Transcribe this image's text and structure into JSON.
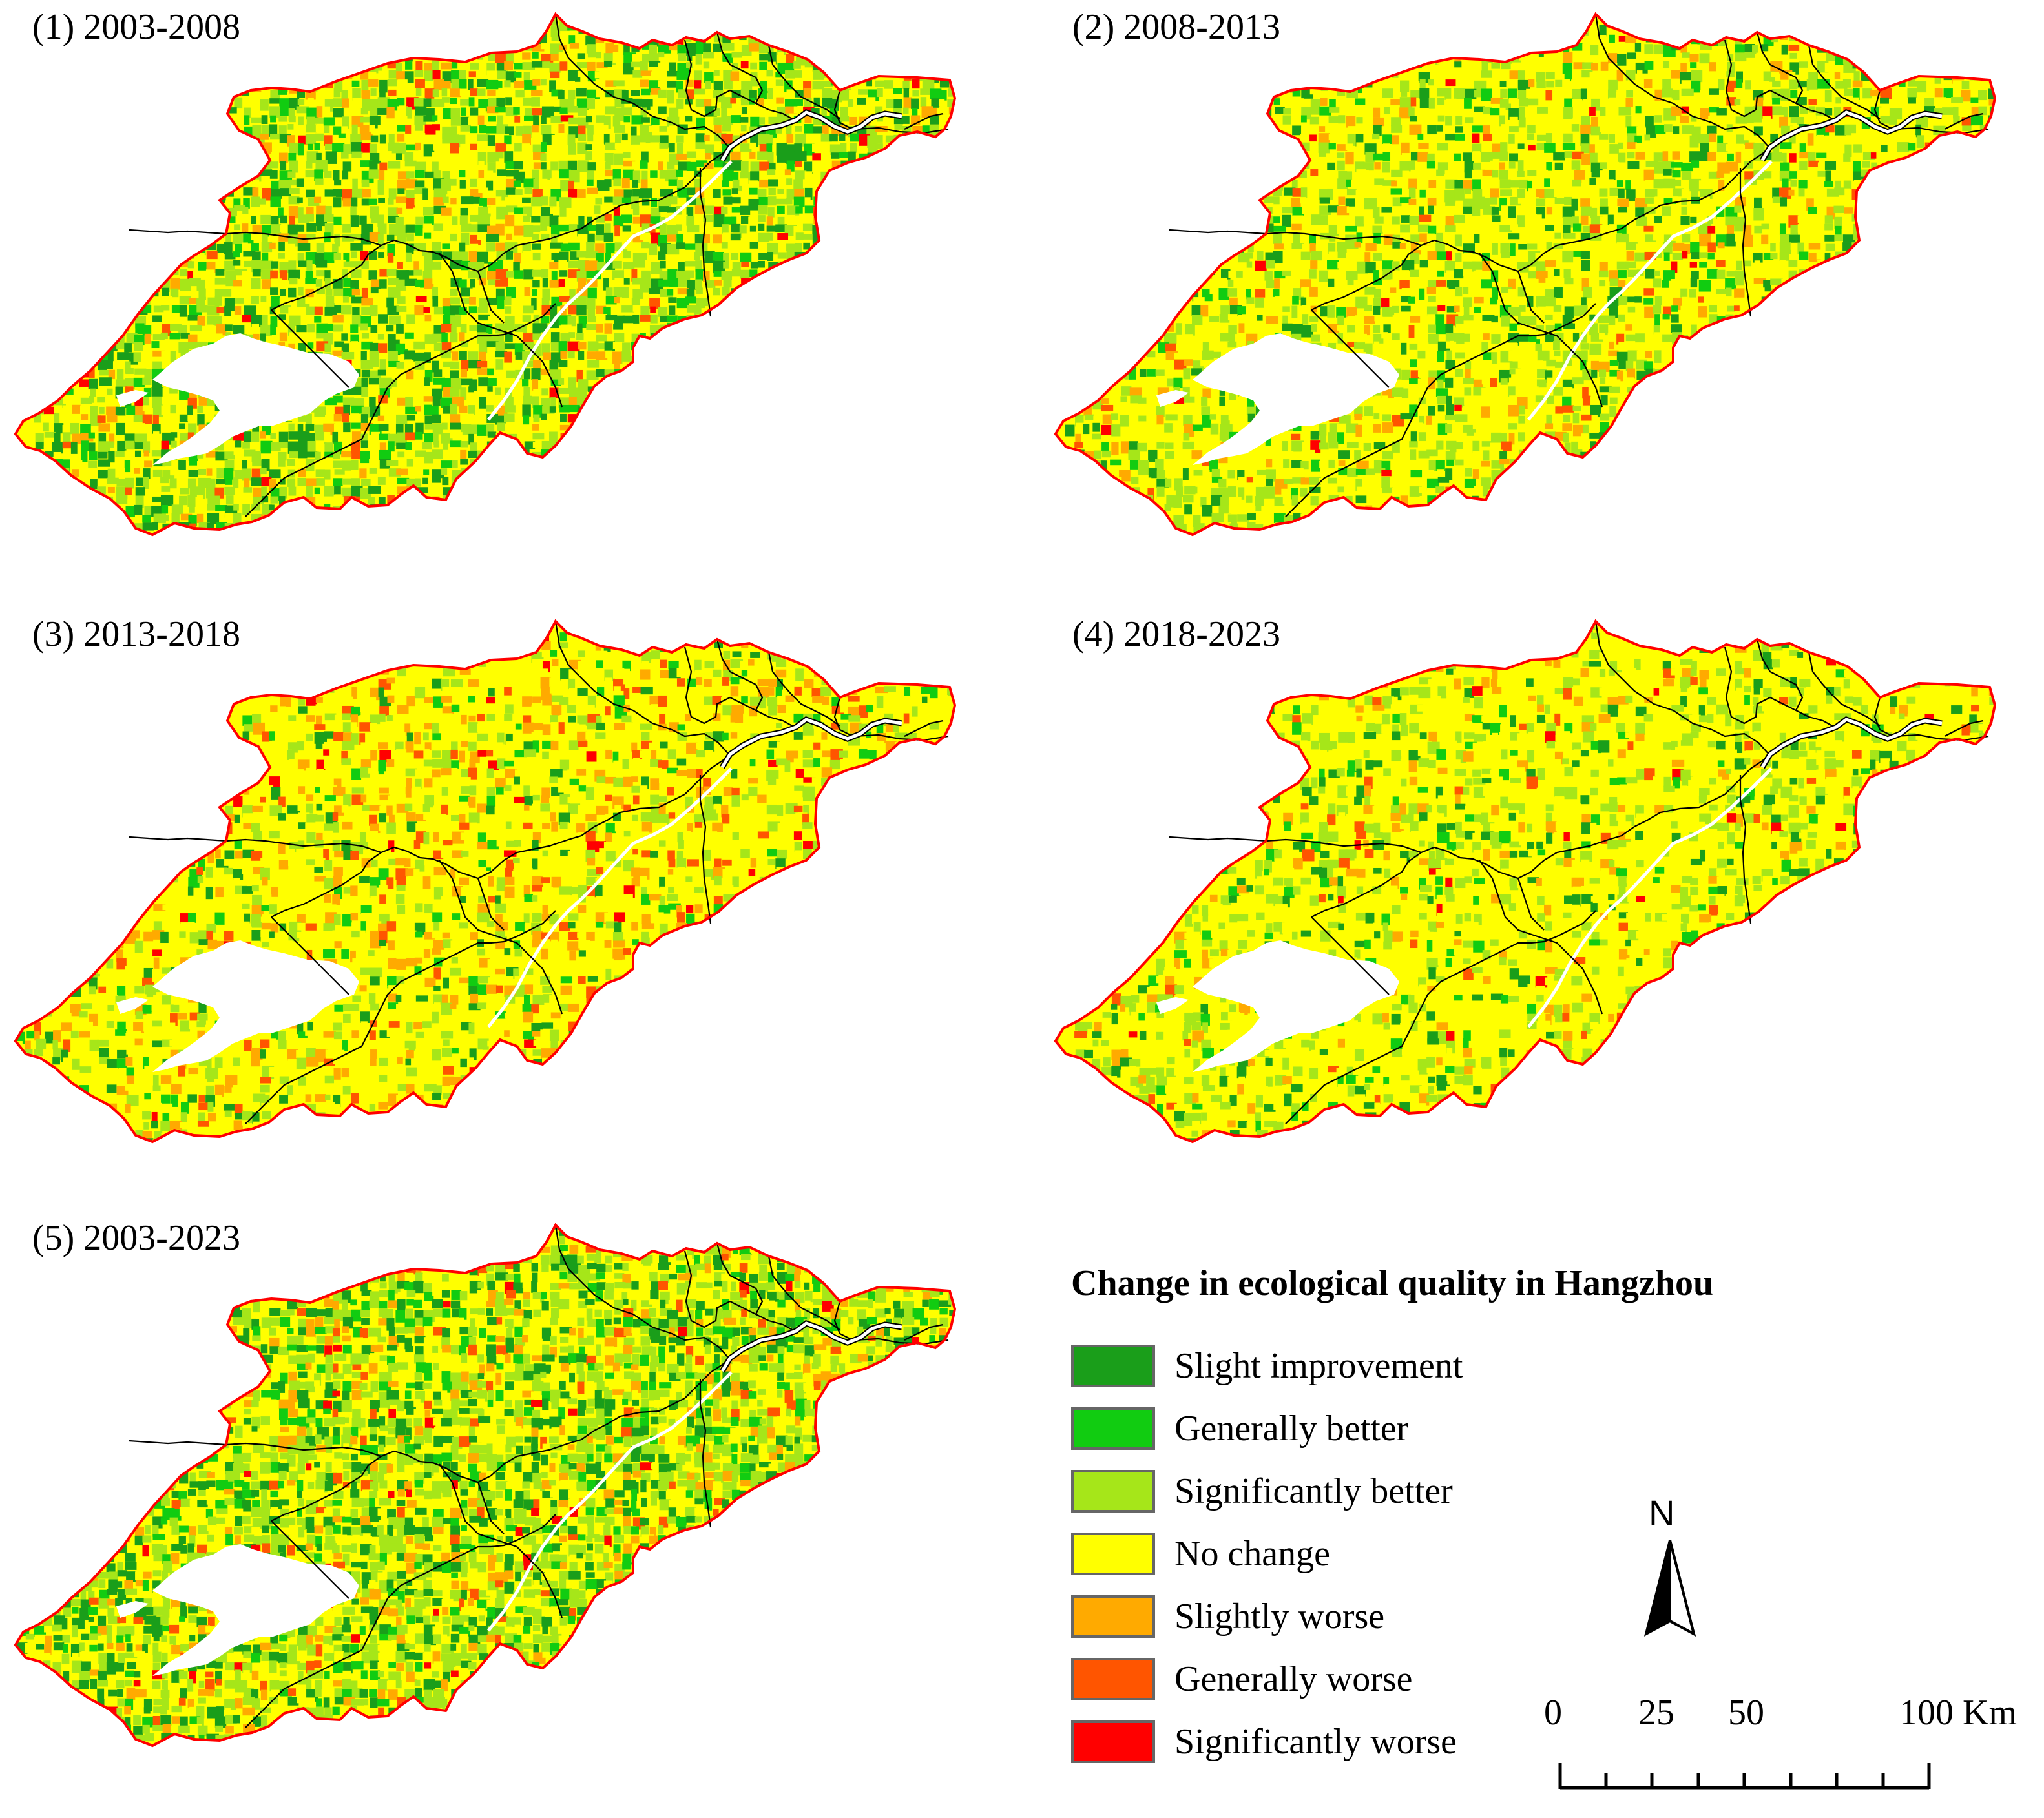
{
  "panels": [
    {
      "id": "p1",
      "title": "(1) 2003-2008",
      "dominant": "mixed_green",
      "seed": 11
    },
    {
      "id": "p2",
      "title": "(2) 2008-2013",
      "dominant": "yellow_green",
      "seed": 23
    },
    {
      "id": "p3",
      "title": "(3) 2013-2018",
      "dominant": "yellow_orange",
      "seed": 37
    },
    {
      "id": "p4",
      "title": "(4) 2018-2023",
      "dominant": "yellow",
      "seed": 51
    },
    {
      "id": "p5",
      "title": "(5) 2003-2023",
      "dominant": "mixed_green",
      "seed": 67
    }
  ],
  "legend": {
    "title": "Change in ecological quality in Hangzhou",
    "items": [
      {
        "label": "Slight improvement",
        "color": "#1a9e1a"
      },
      {
        "label": "Generally better",
        "color": "#11cc11"
      },
      {
        "label": "Significantly better",
        "color": "#a6e619"
      },
      {
        "label": "No change",
        "color": "#ffff00"
      },
      {
        "label": "Slightly worse",
        "color": "#ffaa00"
      },
      {
        "label": "Generally worse",
        "color": "#ff5500"
      },
      {
        "label": "Significantly worse",
        "color": "#ff0000"
      }
    ]
  },
  "north_arrow": {
    "label": "N"
  },
  "scale_bar": {
    "ticks": [
      "0",
      "25",
      "50",
      "100 Km"
    ]
  },
  "map_colors": {
    "boundary": "#ff0000",
    "districts": "#000000",
    "water": "#ffffff"
  }
}
